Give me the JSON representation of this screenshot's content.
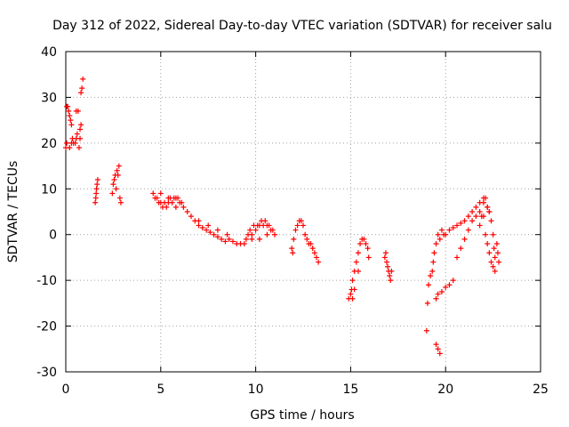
{
  "chart_data": {
    "type": "scatter",
    "title": "Day 312 of 2022, Sidereal Day-to-day VTEC variation (SDTVAR) for receiver salu",
    "xlabel": "GPS time / hours",
    "ylabel": "SDTVAR / TECUs",
    "xlim": [
      0,
      25
    ],
    "ylim": [
      -30,
      40
    ],
    "xticks": [
      "0",
      "5",
      "10",
      "15",
      "20",
      "25"
    ],
    "yticks": [
      "-30",
      "-20",
      "-10",
      "0",
      "10",
      "20",
      "30",
      "40"
    ],
    "grid": true,
    "marker": "+",
    "color": "#ff0000",
    "series": [
      {
        "name": "SDTVAR",
        "points": [
          [
            0.0,
            19
          ],
          [
            0.05,
            20
          ],
          [
            0.05,
            28
          ],
          [
            0.1,
            28
          ],
          [
            0.15,
            27
          ],
          [
            0.2,
            26
          ],
          [
            0.25,
            25
          ],
          [
            0.3,
            24
          ],
          [
            0.2,
            19
          ],
          [
            0.3,
            20
          ],
          [
            0.4,
            20
          ],
          [
            0.5,
            20
          ],
          [
            0.55,
            21
          ],
          [
            0.6,
            22
          ],
          [
            0.55,
            27
          ],
          [
            0.65,
            27
          ],
          [
            0.7,
            19
          ],
          [
            0.75,
            21
          ],
          [
            0.75,
            23
          ],
          [
            0.8,
            24
          ],
          [
            0.8,
            31
          ],
          [
            0.85,
            32
          ],
          [
            0.9,
            34
          ],
          [
            0.35,
            21
          ],
          [
            1.55,
            7
          ],
          [
            1.58,
            8
          ],
          [
            1.6,
            9
          ],
          [
            1.62,
            10
          ],
          [
            1.65,
            11
          ],
          [
            1.68,
            12
          ],
          [
            2.45,
            9
          ],
          [
            2.5,
            11
          ],
          [
            2.55,
            12
          ],
          [
            2.6,
            13
          ],
          [
            2.65,
            10
          ],
          [
            2.7,
            14
          ],
          [
            2.75,
            13
          ],
          [
            2.8,
            15
          ],
          [
            2.85,
            8
          ],
          [
            2.9,
            7
          ],
          [
            4.6,
            9
          ],
          [
            4.7,
            8
          ],
          [
            4.8,
            8
          ],
          [
            4.9,
            7
          ],
          [
            5.0,
            7
          ],
          [
            5.1,
            6
          ],
          [
            5.2,
            7
          ],
          [
            5.3,
            6
          ],
          [
            5.4,
            7
          ],
          [
            5.5,
            8
          ],
          [
            5.6,
            7
          ],
          [
            5.7,
            8
          ],
          [
            5.8,
            8
          ],
          [
            5.9,
            8
          ],
          [
            6.0,
            7
          ],
          [
            6.1,
            7
          ],
          [
            6.2,
            6
          ],
          [
            5.0,
            9
          ],
          [
            5.4,
            8
          ],
          [
            5.8,
            6
          ],
          [
            6.4,
            5
          ],
          [
            6.6,
            4
          ],
          [
            6.8,
            3
          ],
          [
            7.0,
            2
          ],
          [
            7.2,
            1.5
          ],
          [
            7.4,
            1
          ],
          [
            7.6,
            0.5
          ],
          [
            7.8,
            0
          ],
          [
            8.0,
            -0.5
          ],
          [
            8.2,
            -1
          ],
          [
            8.4,
            -1.5
          ],
          [
            8.6,
            -1
          ],
          [
            8.8,
            -1.5
          ],
          [
            9.0,
            -2
          ],
          [
            9.2,
            -2
          ],
          [
            9.4,
            -2
          ],
          [
            7.0,
            3
          ],
          [
            7.5,
            2
          ],
          [
            8.0,
            1
          ],
          [
            8.5,
            0
          ],
          [
            9.5,
            -1
          ],
          [
            9.6,
            0
          ],
          [
            9.7,
            1
          ],
          [
            9.8,
            0
          ],
          [
            9.9,
            2
          ],
          [
            10.0,
            1
          ],
          [
            10.1,
            2
          ],
          [
            10.2,
            2
          ],
          [
            10.3,
            3
          ],
          [
            10.4,
            2
          ],
          [
            10.5,
            3
          ],
          [
            10.6,
            2
          ],
          [
            10.7,
            2
          ],
          [
            10.8,
            1
          ],
          [
            10.9,
            1
          ],
          [
            11.0,
            0
          ],
          [
            9.8,
            -1
          ],
          [
            10.2,
            -1
          ],
          [
            10.6,
            0
          ],
          [
            11.9,
            -3
          ],
          [
            11.95,
            -4
          ],
          [
            12.0,
            -1
          ],
          [
            12.1,
            1
          ],
          [
            12.2,
            2
          ],
          [
            12.3,
            3
          ],
          [
            12.4,
            3
          ],
          [
            12.5,
            2
          ],
          [
            12.6,
            0
          ],
          [
            12.7,
            -1
          ],
          [
            12.8,
            -2
          ],
          [
            12.9,
            -2
          ],
          [
            13.0,
            -3
          ],
          [
            13.1,
            -4
          ],
          [
            13.2,
            -5
          ],
          [
            13.3,
            -6
          ],
          [
            14.9,
            -14
          ],
          [
            15.0,
            -13
          ],
          [
            15.05,
            -12
          ],
          [
            15.1,
            -10
          ],
          [
            15.2,
            -8
          ],
          [
            15.3,
            -6
          ],
          [
            15.4,
            -4
          ],
          [
            15.5,
            -2
          ],
          [
            15.6,
            -1
          ],
          [
            15.7,
            -1
          ],
          [
            15.8,
            -2
          ],
          [
            15.9,
            -3
          ],
          [
            15.95,
            -5
          ],
          [
            15.1,
            -14
          ],
          [
            15.2,
            -12
          ],
          [
            15.4,
            -8
          ],
          [
            16.8,
            -5
          ],
          [
            16.85,
            -4
          ],
          [
            16.9,
            -6
          ],
          [
            16.95,
            -7
          ],
          [
            17.0,
            -8
          ],
          [
            17.05,
            -9
          ],
          [
            17.1,
            -10
          ],
          [
            17.15,
            -8
          ],
          [
            19.0,
            -21
          ],
          [
            19.05,
            -15
          ],
          [
            19.1,
            -11
          ],
          [
            19.2,
            -9
          ],
          [
            19.3,
            -8
          ],
          [
            19.35,
            -6
          ],
          [
            19.4,
            -4
          ],
          [
            19.5,
            -2
          ],
          [
            19.6,
            0
          ],
          [
            19.7,
            -1
          ],
          [
            19.8,
            1
          ],
          [
            19.9,
            0
          ],
          [
            19.5,
            -14
          ],
          [
            19.6,
            -13
          ],
          [
            19.8,
            -12.5
          ],
          [
            20.0,
            -11.5
          ],
          [
            20.2,
            -11
          ],
          [
            20.4,
            -10
          ],
          [
            19.5,
            -24
          ],
          [
            19.6,
            -25
          ],
          [
            19.7,
            -26
          ],
          [
            20.0,
            0
          ],
          [
            20.2,
            1
          ],
          [
            20.4,
            1.5
          ],
          [
            20.6,
            2
          ],
          [
            20.8,
            2.5
          ],
          [
            21.0,
            3
          ],
          [
            21.2,
            4
          ],
          [
            21.4,
            5
          ],
          [
            21.6,
            6
          ],
          [
            21.8,
            7
          ],
          [
            22.0,
            7
          ],
          [
            22.2,
            6
          ],
          [
            22.3,
            5
          ],
          [
            20.6,
            -5
          ],
          [
            20.8,
            -3
          ],
          [
            21.0,
            -1
          ],
          [
            21.2,
            1
          ],
          [
            21.4,
            3
          ],
          [
            21.6,
            4
          ],
          [
            21.8,
            5
          ],
          [
            22.0,
            4
          ],
          [
            22.1,
            0
          ],
          [
            22.2,
            -2
          ],
          [
            22.3,
            -4
          ],
          [
            22.4,
            -6
          ],
          [
            22.5,
            -7
          ],
          [
            22.6,
            -8
          ],
          [
            21.8,
            2
          ],
          [
            21.9,
            4
          ],
          [
            22.0,
            8
          ],
          [
            22.1,
            8
          ],
          [
            22.2,
            6
          ],
          [
            22.3,
            5
          ],
          [
            22.4,
            3
          ],
          [
            22.5,
            0
          ],
          [
            22.55,
            -3
          ],
          [
            22.6,
            -5
          ],
          [
            22.7,
            -2
          ],
          [
            22.75,
            -4
          ],
          [
            22.8,
            -6
          ]
        ]
      }
    ]
  }
}
